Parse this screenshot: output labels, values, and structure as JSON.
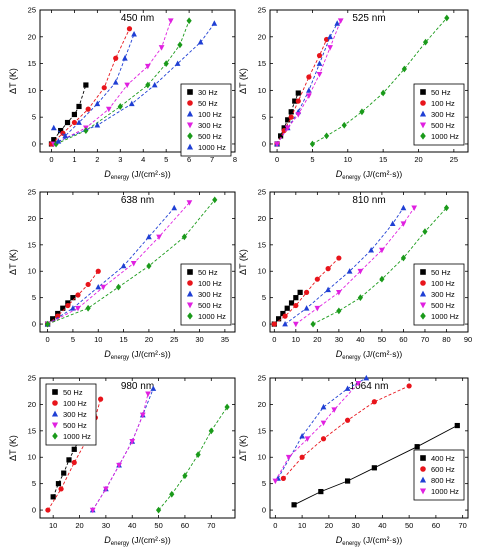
{
  "figure": {
    "ylabel": "ΔT (K)",
    "xlabel_prefix": "D",
    "xlabel_sub": "energy",
    "xlabel_units": " (J/(cm²·s))"
  },
  "series_styles": {
    "50 Hz": {
      "color": "#000000",
      "marker": "square"
    },
    "100 Hz": {
      "color": "#e8141b",
      "marker": "circle"
    },
    "300 Hz": {
      "color": "#1f3fd4",
      "marker": "triangle"
    },
    "500 Hz": {
      "color": "#e020e0",
      "marker": "triangle-down"
    },
    "1000 Hz": {
      "color": "#1a9a1a",
      "marker": "diamond"
    },
    "30 Hz": {
      "color": "#000000",
      "marker": "square"
    },
    "400 Hz": {
      "color": "#000000",
      "marker": "square"
    },
    "600 Hz": {
      "color": "#e8141b",
      "marker": "circle"
    },
    "800 Hz": {
      "color": "#1f3fd4",
      "marker": "triangle"
    },
    "1000 Hz (1064)": {
      "color": "#e020e0",
      "marker": "triangle-down"
    }
  },
  "chart_data": [
    {
      "type": "scatter",
      "title": "450 nm",
      "xlim": [
        -0.5,
        8
      ],
      "ylim": [
        -1.5,
        25
      ],
      "xticks": [
        0,
        1,
        2,
        3,
        4,
        5,
        6,
        7,
        8
      ],
      "yticks": [
        0,
        5,
        10,
        15,
        20,
        25
      ],
      "legend": "lower-right",
      "series": [
        {
          "name": "30 Hz",
          "style": "50 Hz",
          "x": [
            0,
            0.1,
            0.4,
            0.7,
            1.0,
            1.2,
            1.5
          ],
          "y": [
            0,
            0.8,
            2.5,
            4,
            5.5,
            7,
            11
          ]
        },
        {
          "name": "50 Hz",
          "style": "100 Hz",
          "x": [
            0,
            0.5,
            1.0,
            1.6,
            2.3,
            2.8,
            3.4
          ],
          "y": [
            0,
            2,
            4,
            6.5,
            10.5,
            16,
            21.5
          ]
        },
        {
          "name": "100 Hz",
          "style": "300 Hz",
          "x": [
            0.1,
            0.6,
            1.2,
            2.0,
            2.8,
            3.2,
            3.6
          ],
          "y": [
            3,
            1.5,
            4,
            7.5,
            11.5,
            16,
            20.5
          ]
        },
        {
          "name": "300 Hz",
          "style": "500 Hz",
          "x": [
            0.1,
            1.5,
            2.5,
            3.3,
            4.2,
            4.8,
            5.2
          ],
          "y": [
            0,
            3,
            6.5,
            11,
            14.5,
            18,
            23
          ]
        },
        {
          "name": "500 Hz",
          "style": "1000 Hz",
          "x": [
            0.2,
            1.5,
            3.0,
            4.2,
            5.0,
            5.6,
            6.0
          ],
          "y": [
            0,
            2.5,
            7,
            11,
            15,
            18.5,
            23
          ]
        },
        {
          "name": "1000 Hz",
          "style": "300 Hz",
          "x": [
            0.3,
            2.0,
            3.5,
            4.5,
            5.5,
            6.5,
            7.1
          ],
          "y": [
            0.5,
            3.5,
            7.5,
            11,
            15,
            19,
            22.5
          ]
        }
      ]
    },
    {
      "type": "scatter",
      "title": "525 nm",
      "xlim": [
        -1,
        27
      ],
      "ylim": [
        -1.5,
        25
      ],
      "xticks": [
        0,
        5,
        10,
        15,
        20,
        25
      ],
      "yticks": [
        0,
        5,
        10,
        15,
        20,
        25
      ],
      "legend": "lower-right",
      "series": [
        {
          "name": "50 Hz",
          "style": "50 Hz",
          "x": [
            0,
            0.5,
            1.0,
            1.5,
            2.0,
            2.5,
            3.0
          ],
          "y": [
            0,
            1.5,
            3,
            4.5,
            6,
            8,
            9.5
          ]
        },
        {
          "name": "100 Hz",
          "style": "100 Hz",
          "x": [
            0,
            1.0,
            2.0,
            3.0,
            4.5,
            6.0,
            7.0
          ],
          "y": [
            0,
            2.5,
            5,
            8,
            12.5,
            16.5,
            19.5
          ]
        },
        {
          "name": "300 Hz",
          "style": "300 Hz",
          "x": [
            0,
            1.5,
            3.0,
            4.5,
            6.0,
            7.5,
            8.5
          ],
          "y": [
            0,
            3,
            6,
            10,
            15,
            20,
            22.5
          ]
        },
        {
          "name": "500 Hz",
          "style": "500 Hz",
          "x": [
            0,
            1.5,
            3.0,
            4.5,
            6.0,
            7.5,
            9.0
          ],
          "y": [
            0,
            3,
            5.5,
            9,
            13,
            18,
            23
          ]
        },
        {
          "name": "1000 Hz",
          "style": "1000 Hz",
          "x": [
            5,
            7,
            9.5,
            12,
            15,
            18,
            21,
            24
          ],
          "y": [
            0,
            1.5,
            3.5,
            6,
            9.5,
            14,
            19,
            23.5
          ]
        }
      ]
    },
    {
      "type": "scatter",
      "title": "638 nm",
      "xlim": [
        -1.5,
        37
      ],
      "ylim": [
        -1.5,
        25
      ],
      "xticks": [
        0,
        5,
        10,
        15,
        20,
        25,
        30,
        35
      ],
      "yticks": [
        0,
        5,
        10,
        15,
        20,
        25
      ],
      "legend": "lower-right",
      "series": [
        {
          "name": "50 Hz",
          "style": "50 Hz",
          "x": [
            0,
            1,
            2,
            3,
            4,
            5
          ],
          "y": [
            0,
            1,
            2,
            3,
            4,
            5
          ]
        },
        {
          "name": "100 Hz",
          "style": "100 Hz",
          "x": [
            0,
            2,
            4,
            6,
            8,
            10
          ],
          "y": [
            0,
            1.5,
            3.5,
            5.5,
            7.5,
            10
          ]
        },
        {
          "name": "300 Hz",
          "style": "300 Hz",
          "x": [
            0,
            5,
            10,
            15,
            20,
            25
          ],
          "y": [
            0,
            3,
            7,
            11,
            16.5,
            22
          ]
        },
        {
          "name": "500 Hz",
          "style": "500 Hz",
          "x": [
            0,
            6,
            11,
            17,
            22,
            28
          ],
          "y": [
            0,
            3,
            7,
            11.5,
            16.5,
            23
          ]
        },
        {
          "name": "1000 Hz",
          "style": "1000 Hz",
          "x": [
            0,
            8,
            14,
            20,
            27,
            33
          ],
          "y": [
            0,
            3,
            7,
            11,
            16.5,
            23.5
          ]
        }
      ]
    },
    {
      "type": "scatter",
      "title": "810 nm",
      "xlim": [
        -2,
        90
      ],
      "ylim": [
        -1.5,
        25
      ],
      "xticks": [
        0,
        10,
        20,
        30,
        40,
        50,
        60,
        70,
        80,
        90
      ],
      "yticks": [
        0,
        5,
        10,
        15,
        20,
        25
      ],
      "legend": "lower-right",
      "series": [
        {
          "name": "50 Hz",
          "style": "50 Hz",
          "x": [
            0,
            2,
            4,
            6,
            8,
            10,
            12
          ],
          "y": [
            0,
            1,
            2,
            3,
            4,
            5,
            6
          ]
        },
        {
          "name": "100 Hz",
          "style": "100 Hz",
          "x": [
            0,
            5,
            10,
            15,
            20,
            25,
            30
          ],
          "y": [
            0,
            1.5,
            3.5,
            6,
            8.5,
            10.5,
            12.5
          ]
        },
        {
          "name": "300 Hz",
          "style": "300 Hz",
          "x": [
            5,
            15,
            25,
            35,
            45,
            55,
            60
          ],
          "y": [
            0,
            3,
            6.5,
            10,
            14,
            19,
            22
          ]
        },
        {
          "name": "500 Hz",
          "style": "500 Hz",
          "x": [
            10,
            20,
            30,
            40,
            50,
            60,
            65
          ],
          "y": [
            0,
            3,
            6,
            10,
            14,
            19,
            22
          ]
        },
        {
          "name": "1000 Hz",
          "style": "1000 Hz",
          "x": [
            18,
            30,
            40,
            50,
            60,
            70,
            80
          ],
          "y": [
            0,
            2.5,
            5,
            8.5,
            12.5,
            17.5,
            22
          ]
        }
      ]
    },
    {
      "type": "scatter",
      "title": "980 nm",
      "xlim": [
        5,
        79
      ],
      "ylim": [
        -1.5,
        25
      ],
      "xticks": [
        10,
        20,
        30,
        40,
        50,
        60,
        70
      ],
      "yticks": [
        0,
        5,
        10,
        15,
        20,
        25
      ],
      "legend": "top-left",
      "series": [
        {
          "name": "50 Hz",
          "style": "50 Hz",
          "x": [
            10,
            12,
            14,
            16,
            18,
            20,
            22
          ],
          "y": [
            2.5,
            5,
            7,
            9.5,
            11.5,
            13.5,
            15.5
          ]
        },
        {
          "name": "100 Hz",
          "style": "100 Hz",
          "x": [
            8,
            13,
            18,
            23,
            26,
            28
          ],
          "y": [
            0,
            4,
            9,
            13.5,
            17.5,
            21
          ]
        },
        {
          "name": "300 Hz",
          "style": "300 Hz",
          "x": [
            25,
            30,
            35,
            40,
            44,
            48
          ],
          "y": [
            0,
            4,
            8.5,
            13,
            18,
            23
          ]
        },
        {
          "name": "500 Hz",
          "style": "500 Hz",
          "x": [
            25,
            30,
            35,
            40,
            44,
            46
          ],
          "y": [
            0,
            4,
            8.5,
            13,
            18,
            22
          ]
        },
        {
          "name": "1000 Hz",
          "style": "1000 Hz",
          "x": [
            50,
            55,
            60,
            65,
            70,
            76
          ],
          "y": [
            0,
            3,
            6.5,
            10.5,
            15,
            19.5
          ]
        }
      ]
    },
    {
      "type": "line",
      "title": "1064 nm",
      "xlim": [
        -2,
        72
      ],
      "ylim": [
        -1.5,
        25
      ],
      "xticks": [
        0,
        10,
        20,
        30,
        40,
        50,
        60,
        70
      ],
      "yticks": [
        0,
        5,
        10,
        15,
        20,
        25
      ],
      "legend": "lower-right",
      "series": [
        {
          "name": "400 Hz",
          "style": "400 Hz",
          "x": [
            7,
            17,
            27,
            37,
            53,
            68
          ],
          "y": [
            1,
            3.5,
            5.5,
            8,
            12,
            16
          ]
        },
        {
          "name": "600 Hz",
          "style": "600 Hz",
          "x": [
            3,
            10,
            18,
            27,
            37,
            50
          ],
          "y": [
            6,
            10,
            13.5,
            17,
            20.5,
            23.5
          ]
        },
        {
          "name": "800 Hz",
          "style": "800 Hz",
          "x": [
            1,
            10,
            18,
            27,
            34
          ],
          "y": [
            6,
            14,
            19.5,
            23,
            25
          ]
        },
        {
          "name": "1000 Hz",
          "style": "1000 Hz (1064)",
          "x": [
            0,
            5,
            12,
            18,
            22,
            31
          ],
          "y": [
            5.5,
            10,
            13.5,
            16.5,
            19,
            24
          ]
        }
      ]
    }
  ]
}
